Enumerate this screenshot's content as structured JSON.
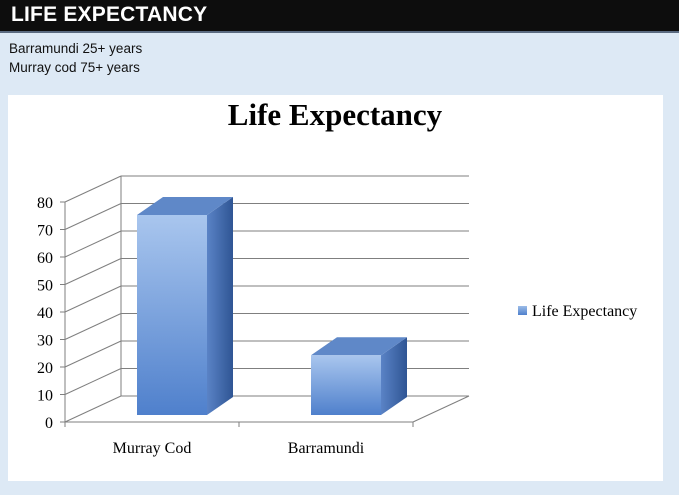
{
  "header": {
    "title": "LIFE EXPECTANCY"
  },
  "notes": [
    "Barramundi 25+ years",
    "Murray cod 75+ years"
  ],
  "chart_data": {
    "type": "bar",
    "title": "Life Expectancy",
    "categories": [
      "Murray Cod",
      "Barramundi"
    ],
    "series": [
      {
        "name": "Life Expectancy",
        "values": [
          76,
          25
        ]
      }
    ],
    "ylim": [
      0,
      80
    ],
    "yticks": [
      0,
      10,
      20,
      30,
      40,
      50,
      60,
      70,
      80
    ],
    "grid": true,
    "legend": "right",
    "colors": {
      "bar_front": "#6f9fde",
      "bar_side": "#3d64a8",
      "bar_top": "#5f88c8",
      "grid": "#7f7f7f"
    }
  }
}
